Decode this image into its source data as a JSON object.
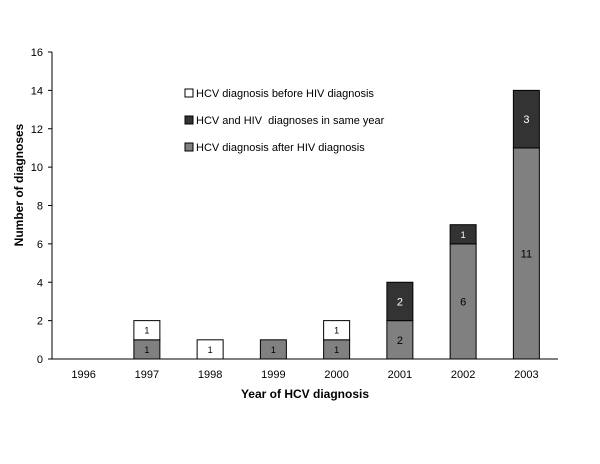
{
  "chart_data": {
    "type": "bar",
    "stacked": true,
    "categories": [
      "1996",
      "1997",
      "1998",
      "1999",
      "2000",
      "2001",
      "2002",
      "2003"
    ],
    "series": [
      {
        "name": "HCV diagnosis after HIV diagnosis",
        "color": "#808080",
        "label_color": "#000000",
        "values": [
          0,
          1,
          0,
          1,
          1,
          2,
          6,
          11
        ],
        "labels": [
          "",
          "1",
          "",
          "1",
          "1",
          "2",
          "6",
          "11"
        ]
      },
      {
        "name": "HCV and HIV  diagnoses in same year",
        "color": "#333333",
        "label_color": "#ffffff",
        "values": [
          0,
          0,
          0,
          0,
          0,
          2,
          1,
          3
        ],
        "labels": [
          "",
          "",
          "",
          "",
          "",
          "2",
          "1",
          "3"
        ]
      },
      {
        "name": "HCV diagnosis before HIV diagnosis",
        "color": "#ffffff",
        "label_color": "#000000",
        "values": [
          0,
          1,
          1,
          0,
          1,
          0,
          0,
          0
        ],
        "labels": [
          "",
          "1",
          "1",
          "",
          "1",
          "",
          "",
          ""
        ]
      }
    ],
    "legend": [
      "HCV diagnosis before HIV diagnosis",
      "HCV and HIV  diagnoses in same year",
      "HCV diagnosis after HIV diagnosis"
    ],
    "legend_colors": [
      "#ffffff",
      "#333333",
      "#808080"
    ],
    "xlabel": "Year of HCV diagnosis",
    "ylabel": "Number of diagnoses",
    "ylim": [
      0,
      16
    ],
    "yticks": [
      "0",
      "2",
      "4",
      "6",
      "8",
      "10",
      "12",
      "14",
      "16"
    ],
    "grid": false,
    "legend_position": "top-center"
  }
}
